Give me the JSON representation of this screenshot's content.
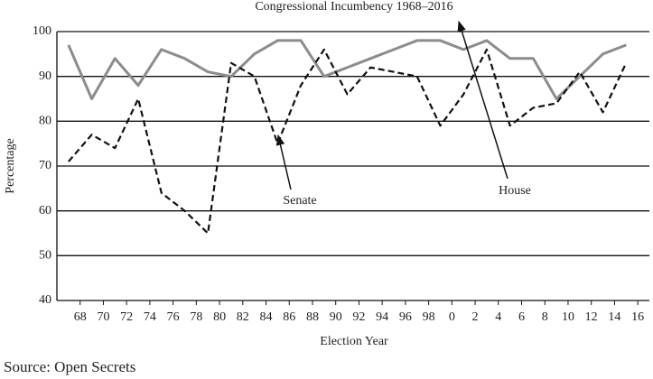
{
  "chart_data": {
    "type": "line",
    "title": "Congressional Incumbency 1968–2016",
    "x_label": "Election Year",
    "y_label": "Percentage",
    "x": [
      1967,
      1969,
      1971,
      1973,
      1975,
      1977,
      1979,
      1981,
      1983,
      1985,
      1987,
      1989,
      1991,
      1993,
      1995,
      1997,
      1999,
      2001,
      2003,
      2005,
      2007,
      2009,
      2011,
      2013,
      2015
    ],
    "series": [
      {
        "name": "House",
        "color": "#8c8c8c",
        "dashed": false,
        "values": [
          97,
          85,
          94,
          88,
          96,
          94,
          91,
          90,
          95,
          98,
          98,
          90,
          92,
          94,
          96,
          98,
          98,
          96,
          98,
          94,
          94,
          85,
          90,
          95,
          97
        ]
      },
      {
        "name": "Senate",
        "color": "#111111",
        "dashed": true,
        "values": [
          71,
          77,
          74,
          85,
          64,
          60,
          55,
          93,
          90,
          75,
          88,
          96,
          86,
          92,
          91,
          90,
          79,
          86,
          96,
          79,
          83,
          84,
          91,
          82,
          93
        ]
      }
    ],
    "xlim": [
      1966,
      2017
    ],
    "xticks": [
      {
        "value": 1968,
        "label": "68"
      },
      {
        "value": 1970,
        "label": "70"
      },
      {
        "value": 1972,
        "label": "72"
      },
      {
        "value": 1974,
        "label": "74"
      },
      {
        "value": 1976,
        "label": "76"
      },
      {
        "value": 1978,
        "label": "78"
      },
      {
        "value": 1980,
        "label": "80"
      },
      {
        "value": 1982,
        "label": "82"
      },
      {
        "value": 1984,
        "label": "84"
      },
      {
        "value": 1986,
        "label": "86"
      },
      {
        "value": 1988,
        "label": "88"
      },
      {
        "value": 1990,
        "label": "90"
      },
      {
        "value": 1992,
        "label": "92"
      },
      {
        "value": 1994,
        "label": "94"
      },
      {
        "value": 1996,
        "label": "96"
      },
      {
        "value": 1998,
        "label": "98"
      },
      {
        "value": 2000,
        "label": "0"
      },
      {
        "value": 2002,
        "label": "2"
      },
      {
        "value": 2004,
        "label": "4"
      },
      {
        "value": 2006,
        "label": "6"
      },
      {
        "value": 2008,
        "label": "8"
      },
      {
        "value": 2010,
        "label": "10"
      },
      {
        "value": 2012,
        "label": "12"
      },
      {
        "value": 2014,
        "label": "14"
      },
      {
        "value": 2016,
        "label": "16"
      }
    ],
    "ylim": [
      40,
      100
    ],
    "yticks": [
      40,
      50,
      60,
      70,
      80,
      90,
      100
    ],
    "grid": true,
    "annotations": [
      "Senate",
      "House"
    ],
    "source": "Source: Open Secrets"
  }
}
